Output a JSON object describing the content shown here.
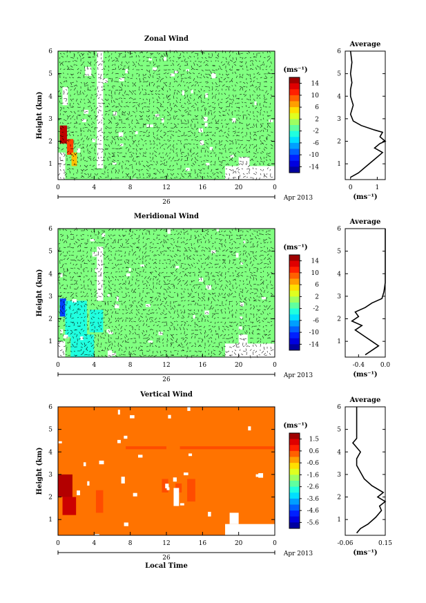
{
  "chart_data": [
    {
      "type": "heatmap",
      "title": "Zonal Wind",
      "ylabel": "Height (km)",
      "ylim": [
        0.3,
        6
      ],
      "yticks": [
        1,
        2,
        3,
        4,
        5,
        6
      ],
      "xlim": [
        0,
        24
      ],
      "xticks": [
        "0",
        "4",
        "8",
        "12",
        "16",
        "20",
        "0"
      ],
      "date_label": "26",
      "month_label": "Apr 2013",
      "colorbar": {
        "unit": "(ms⁻¹)",
        "ticks": [
          "14",
          "10",
          "6",
          "2",
          "-2",
          "-6",
          "-10",
          "-14"
        ],
        "range": [
          -16,
          16
        ]
      },
      "field_value": 0,
      "has_wind_arrows": true,
      "hot_patches": [
        {
          "x": [
            0.2,
            1.0
          ],
          "y": [
            1.9,
            2.7
          ],
          "value": 14
        },
        {
          "x": [
            1.0,
            1.7
          ],
          "y": [
            1.4,
            2.1
          ],
          "value": 10
        },
        {
          "x": [
            1.5,
            2.1
          ],
          "y": [
            0.9,
            1.5
          ],
          "value": 6
        }
      ],
      "gaps": [
        {
          "x": [
            0.0,
            0.8
          ],
          "y": [
            0.3,
            1.5
          ]
        },
        {
          "x": [
            4.3,
            5.0
          ],
          "y": [
            0.8,
            6.0
          ]
        },
        {
          "x": [
            18.5,
            24.0
          ],
          "y": [
            0.3,
            0.9
          ]
        },
        {
          "x": [
            20.0,
            21.2
          ],
          "y": [
            0.9,
            1.3
          ]
        },
        {
          "x": [
            0.5,
            1.1
          ],
          "y": [
            3.6,
            4.4
          ]
        },
        {
          "x": [
            3.0,
            3.7
          ],
          "y": [
            4.9,
            5.3
          ]
        }
      ],
      "average": {
        "title": "Average",
        "xlabel": "(ms⁻¹)",
        "xlim": [
          -0.2,
          1.3
        ],
        "xticks": [
          "0",
          "1"
        ],
        "x": [
          0.0,
          0.3,
          0.6,
          1.0,
          1.2,
          0.9,
          1.1,
          1.3,
          1.1,
          1.2,
          0.9,
          0.4,
          0.1,
          0.0,
          0.1,
          0.0,
          0.0,
          0.05,
          0.0,
          0.05,
          0.0
        ],
        "y": [
          0.4,
          0.6,
          0.9,
          1.3,
          1.5,
          1.7,
          1.9,
          2.0,
          2.2,
          2.4,
          2.5,
          2.7,
          2.9,
          3.2,
          3.6,
          4.0,
          4.3,
          4.6,
          5.0,
          5.5,
          6.0
        ]
      }
    },
    {
      "type": "heatmap",
      "title": "Meridional Wind",
      "ylabel": "Height (km)",
      "ylim": [
        0.3,
        6
      ],
      "yticks": [
        1,
        2,
        3,
        4,
        5,
        6
      ],
      "xlim": [
        0,
        24
      ],
      "xticks": [
        "0",
        "4",
        "8",
        "12",
        "16",
        "20",
        "0"
      ],
      "date_label": "26",
      "month_label": "Apr 2013",
      "colorbar": {
        "unit": "(ms⁻¹)",
        "ticks": [
          "14",
          "10",
          "6",
          "2",
          "-2",
          "-6",
          "-10",
          "-14"
        ],
        "range": [
          -16,
          16
        ]
      },
      "field_value": 0,
      "has_wind_arrows": true,
      "hot_patches": [
        {
          "x": [
            0.2,
            0.9
          ],
          "y": [
            2.1,
            2.9
          ],
          "value": -10
        },
        {
          "x": [
            0.8,
            3.2
          ],
          "y": [
            1.2,
            2.8
          ],
          "value": -3
        },
        {
          "x": [
            1.4,
            4.0
          ],
          "y": [
            0.3,
            1.3
          ],
          "value": -3
        },
        {
          "x": [
            3.5,
            5.0
          ],
          "y": [
            1.4,
            2.4
          ],
          "value": -3
        }
      ],
      "gaps": [
        {
          "x": [
            0.0,
            0.8
          ],
          "y": [
            0.3,
            1.0
          ]
        },
        {
          "x": [
            4.3,
            5.0
          ],
          "y": [
            2.8,
            5.2
          ]
        },
        {
          "x": [
            18.5,
            24.0
          ],
          "y": [
            0.3,
            0.9
          ]
        },
        {
          "x": [
            20.0,
            21.0
          ],
          "y": [
            0.9,
            1.3
          ]
        },
        {
          "x": [
            5.5,
            6.0
          ],
          "y": [
            0.3,
            0.6
          ]
        }
      ],
      "average": {
        "title": "Average",
        "xlabel": "(ms⁻¹)",
        "xlim": [
          -0.6,
          0.0
        ],
        "xticks": [
          "-0.4",
          "0.0"
        ],
        "x": [
          -0.3,
          -0.2,
          -0.1,
          -0.2,
          -0.3,
          -0.45,
          -0.35,
          -0.5,
          -0.4,
          -0.45,
          -0.3,
          -0.2,
          -0.05,
          -0.02,
          0.0,
          0.0,
          0.0,
          0.0,
          0.0,
          0.0,
          0.0
        ],
        "y": [
          0.4,
          0.6,
          0.8,
          1.0,
          1.2,
          1.5,
          1.7,
          1.9,
          2.1,
          2.3,
          2.5,
          2.7,
          2.9,
          3.2,
          3.6,
          4.0,
          4.3,
          4.6,
          5.0,
          5.5,
          6.0
        ]
      }
    },
    {
      "type": "heatmap",
      "title": "Vertical Wind",
      "ylabel": "Height (km)",
      "xlabel": "Local Time",
      "ylim": [
        0.3,
        6
      ],
      "yticks": [
        1,
        2,
        3,
        4,
        5,
        6
      ],
      "xlim": [
        0,
        24
      ],
      "xticks": [
        "0",
        "4",
        "8",
        "12",
        "16",
        "20",
        "0"
      ],
      "date_label": "26",
      "month_label": "Apr 2013",
      "colorbar": {
        "unit": "(ms⁻¹)",
        "ticks": [
          "1.5",
          "0.6",
          "-0.6",
          "-1.6",
          "-2.6",
          "-3.6",
          "-4.6",
          "-5.6"
        ],
        "range": [
          -6,
          2
        ]
      },
      "field_value": 0.1,
      "has_wind_arrows": false,
      "hot_patches": [
        {
          "x": [
            0.0,
            1.6
          ],
          "y": [
            2.0,
            3.0
          ],
          "value": 1.6
        },
        {
          "x": [
            0.5,
            2.0
          ],
          "y": [
            1.2,
            2.0
          ],
          "value": 1.4
        },
        {
          "x": [
            4.2,
            5.0
          ],
          "y": [
            1.3,
            2.3
          ],
          "value": 0.4
        },
        {
          "x": [
            11.5,
            12.2
          ],
          "y": [
            2.2,
            2.8
          ],
          "value": 0.4
        },
        {
          "x": [
            13.0,
            13.7
          ],
          "y": [
            2.2,
            2.6
          ],
          "value": 0.4
        },
        {
          "x": [
            14.3,
            15.2
          ],
          "y": [
            1.8,
            2.8
          ],
          "value": 0.4
        },
        {
          "x": [
            7.5,
            12.0
          ],
          "y": [
            4.12,
            4.25
          ],
          "value": 0.4
        },
        {
          "x": [
            13.5,
            24.0
          ],
          "y": [
            4.12,
            4.25
          ],
          "value": 0.4
        }
      ],
      "gaps": [
        {
          "x": [
            18.5,
            24.0
          ],
          "y": [
            0.3,
            0.8
          ]
        },
        {
          "x": [
            19.0,
            20.0
          ],
          "y": [
            0.8,
            1.3
          ]
        },
        {
          "x": [
            12.8,
            13.4
          ],
          "y": [
            1.6,
            2.4
          ]
        },
        {
          "x": [
            7.0,
            7.4
          ],
          "y": [
            2.6,
            2.9
          ]
        }
      ],
      "average": {
        "title": "Average",
        "xlabel": "(ms⁻¹)",
        "xlim": [
          -0.06,
          0.15
        ],
        "xticks": [
          "-0.06",
          "0.15"
        ],
        "x": [
          0.0,
          0.02,
          0.06,
          0.1,
          0.13,
          0.12,
          0.15,
          0.11,
          0.14,
          0.08,
          0.04,
          0.02,
          0.0,
          0.0,
          0.02,
          0.0,
          -0.02,
          0.0,
          0.0,
          0.0,
          0.0
        ],
        "y": [
          0.4,
          0.6,
          0.8,
          1.1,
          1.4,
          1.6,
          1.8,
          2.0,
          2.2,
          2.5,
          2.8,
          3.1,
          3.4,
          3.7,
          4.0,
          4.2,
          4.4,
          4.6,
          5.0,
          5.5,
          6.0
        ]
      }
    }
  ]
}
